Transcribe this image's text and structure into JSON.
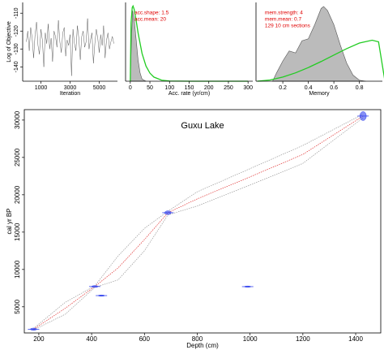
{
  "chart_data": [
    {
      "type": "line",
      "xlabel": "Iteration",
      "ylabel": "Log of Objective",
      "x": [
        0,
        100,
        200,
        300,
        400,
        500,
        600,
        700,
        800,
        900,
        1000,
        1100,
        1200,
        1300,
        1400,
        1500,
        1600,
        1700,
        1800,
        1900,
        2000,
        2100,
        2200,
        2300,
        2400,
        2500,
        2600,
        2700,
        2800,
        2900,
        3000,
        3100,
        3200,
        3300,
        3400,
        3500,
        3600,
        3700,
        3800,
        3900,
        4000,
        4100,
        4200,
        4300,
        4400,
        4500,
        4600,
        4700,
        4800,
        4900,
        5000,
        5100,
        5200,
        5300,
        5400,
        5500,
        5600,
        5700,
        5800,
        5900,
        6000
      ],
      "series": [
        {
          "color": "#333333",
          "style": "line",
          "values": [
            -126,
            -120,
            -131,
            -118,
            -124,
            -135,
            -122,
            -115,
            -128,
            -133,
            -119,
            -125,
            -140,
            -121,
            -127,
            -116,
            -130,
            -124,
            -137,
            -120,
            -123,
            -129,
            -114,
            -126,
            -132,
            -121,
            -118,
            -134,
            -125,
            -128,
            -122,
            -145,
            -119,
            -127,
            -131,
            -117,
            -124,
            -136,
            -123,
            -120,
            -129,
            -126,
            -113,
            -130,
            -125,
            -121,
            -138,
            -127,
            -119,
            -124,
            -132,
            -122,
            -128,
            -117,
            -135,
            -125,
            -121,
            -130,
            -126,
            -123,
            -127
          ]
        }
      ],
      "xlim": [
        -250,
        6250
      ],
      "ylim": [
        -148,
        -104
      ],
      "xticks": [
        1000,
        3000,
        5000
      ],
      "yticks": [
        -140,
        -130,
        -120,
        -110
      ]
    },
    {
      "type": "density",
      "xlabel": "Acc. rate (yr/cm)",
      "annotations": [
        "acc.shape: 1.5",
        "acc.mean: 20"
      ],
      "annotation_color": "#e00000",
      "series": [
        {
          "color": "#bbbbbb",
          "style": "area",
          "x": [
            0,
            3,
            6,
            10,
            15,
            20,
            25,
            30,
            40
          ],
          "values": [
            0,
            0.02,
            0.034,
            0.03,
            0.02,
            0.01,
            0.004,
            0.001,
            0
          ]
        },
        {
          "color": "#22cc22",
          "style": "line",
          "x": [
            0,
            2,
            5,
            7,
            10,
            15,
            20,
            30,
            40,
            50,
            60,
            80,
            100,
            150,
            300
          ],
          "values": [
            0,
            0.0282,
            0.0356,
            0.0363,
            0.0346,
            0.0292,
            0.0231,
            0.0134,
            0.0073,
            0.0039,
            0.002,
            0.0005,
            0.0001,
            0,
            0
          ]
        }
      ],
      "xlim": [
        -12,
        312
      ],
      "ylim": [
        0,
        0.038
      ],
      "xticks": [
        0,
        50,
        100,
        150,
        200,
        250,
        300
      ]
    },
    {
      "type": "density",
      "xlabel": "Memory",
      "annotations": [
        "mem.strength: 4",
        "mem.mean: 0.7",
        "129 10 cm sections"
      ],
      "annotation_color": "#e00000",
      "series": [
        {
          "color": "#bbbbbb",
          "style": "area",
          "x": [
            0.12,
            0.15,
            0.2,
            0.25,
            0.3,
            0.35,
            0.4,
            0.45,
            0.5,
            0.52,
            0.55,
            0.6,
            0.65,
            0.7,
            0.75,
            0.8,
            0.85
          ],
          "values": [
            0,
            0.4,
            1.0,
            1.5,
            1.4,
            2.0,
            2.1,
            2.8,
            3.6,
            3.7,
            3.5,
            2.8,
            1.8,
            0.9,
            0.3,
            0.05,
            0
          ]
        },
        {
          "color": "#22cc22",
          "style": "line",
          "x": [
            0,
            0.1,
            0.2,
            0.3,
            0.4,
            0.5,
            0.6,
            0.7,
            0.8,
            0.9,
            0.95,
            1
          ],
          "values": [
            0,
            0.06,
            0.206,
            0.415,
            0.676,
            0.974,
            1.294,
            1.611,
            1.89,
            2.03,
            1.951,
            0
          ]
        }
      ],
      "xlim": [
        -0.01,
        0.98
      ],
      "ylim": [
        0,
        3.9
      ],
      "xticks": [
        0.2,
        0.4,
        0.6,
        0.8
      ]
    },
    {
      "type": "age-depth",
      "title": "Guxu Lake",
      "xlabel": "Depth (cm)",
      "ylabel": "cal yr BP",
      "x": [
        180,
        300,
        412,
        500,
        600,
        689,
        800,
        1000,
        1200,
        1428
      ],
      "series": [
        {
          "color": "#999999",
          "style": "dotted",
          "values": [
            1900,
            4000,
            7600,
            8600,
            12500,
            17300,
            18500,
            21300,
            24200,
            30300
          ]
        },
        {
          "color": "#999999",
          "style": "dotted",
          "values": [
            2100,
            5600,
            7800,
            11800,
            15500,
            17800,
            20400,
            23500,
            26600,
            30800
          ]
        },
        {
          "color": "#e03030",
          "style": "dotted",
          "values": [
            2000,
            4800,
            7717,
            10200,
            14000,
            17600,
            19450,
            22400,
            25400,
            30540
          ]
        }
      ],
      "dates": {
        "color": "#3344ee",
        "depth": [
          180,
          412,
          437,
          689,
          991,
          1428
        ],
        "age": [
          2000,
          7717,
          6500,
          17600,
          7700,
          30540
        ],
        "error": [
          150,
          120,
          80,
          250,
          60,
          600
        ]
      },
      "xlim": [
        145,
        1495
      ],
      "ylim": [
        1500,
        31400
      ],
      "xticks": [
        200,
        400,
        600,
        800,
        1000,
        1200,
        1400
      ],
      "yticks": [
        5000,
        10000,
        15000,
        20000,
        25000,
        30000
      ],
      "box": true
    }
  ]
}
